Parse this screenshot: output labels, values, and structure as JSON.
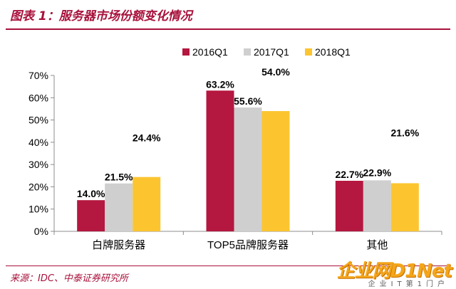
{
  "header": {
    "title": "图表 1：服务器市场份额变化情况"
  },
  "footer": {
    "source": "来源：IDC、中泰证券研究所"
  },
  "watermark": {
    "main": "企业网D1Net",
    "sub": "企业IT第1门户"
  },
  "chart_data": {
    "type": "bar",
    "categories": [
      "白牌服务器",
      "TOP5品牌服务器",
      "其他"
    ],
    "series": [
      {
        "name": "2016Q1",
        "values": [
          14.0,
          63.2,
          22.7
        ],
        "labels": [
          "14.0%",
          "63.2%",
          "22.7%"
        ],
        "color": "#b4173f"
      },
      {
        "name": "2017Q1",
        "values": [
          21.5,
          55.6,
          22.9
        ],
        "labels": [
          "21.5%",
          "55.6%",
          "22.9%"
        ],
        "color": "#cfcfcf"
      },
      {
        "name": "2018Q1",
        "values": [
          24.4,
          54.0,
          21.6
        ],
        "labels": [
          "24.4%",
          "54.0%",
          "21.6%"
        ],
        "color": "#fcc530"
      }
    ],
    "ylim": [
      0,
      70
    ],
    "yticks": [
      "0%",
      "10%",
      "20%",
      "30%",
      "40%",
      "50%",
      "60%",
      "70%"
    ],
    "legend": "top-center",
    "grid": false
  }
}
